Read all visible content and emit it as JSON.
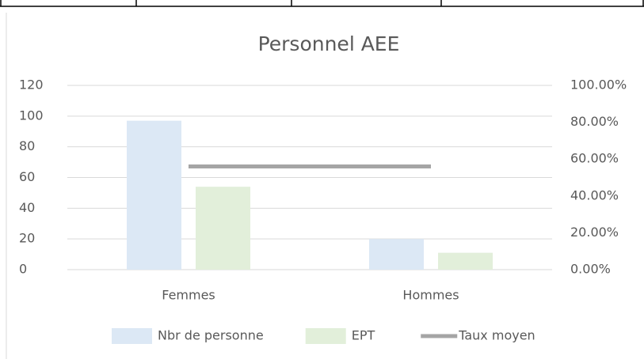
{
  "chart_data": {
    "type": "bar",
    "title": "Personnel AEE",
    "categories": [
      "Femmes",
      "Hommes"
    ],
    "series": [
      {
        "name": "Nbr de personne",
        "type": "bar",
        "color": "#dce8f5",
        "values": [
          97,
          20
        ]
      },
      {
        "name": "EPT",
        "type": "bar",
        "color": "#e2efda",
        "values": [
          54,
          11
        ]
      },
      {
        "name": "Taux moyen",
        "type": "line",
        "axis": "y2",
        "color": "#a5a5a5",
        "values": [
          56,
          56
        ]
      }
    ],
    "ylim": [
      0,
      120
    ],
    "yticks": [
      0,
      20,
      40,
      60,
      80,
      100,
      120
    ],
    "y2lim": [
      0,
      100
    ],
    "y2ticks": [
      {
        "value": 0,
        "label": "0.00%"
      },
      {
        "value": 20,
        "label": "20.00%"
      },
      {
        "value": 40,
        "label": "40.00%"
      },
      {
        "value": 60,
        "label": "60.00%"
      },
      {
        "value": 80,
        "label": "80.00%"
      },
      {
        "value": 100,
        "label": "100.00%"
      }
    ],
    "grid": true,
    "legend": "bottom"
  }
}
